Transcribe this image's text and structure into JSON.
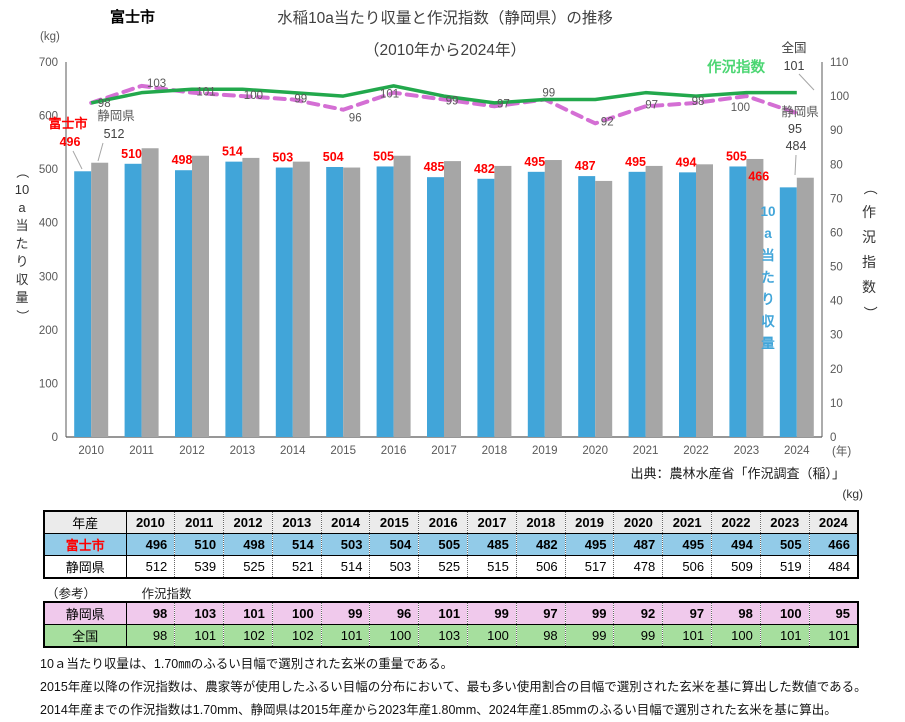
{
  "page": {
    "city_label": "富士市",
    "title_line1": "水稲10a当たり収量と作況指数（静岡県）の推移",
    "title_line2": "（2010年から2024年）",
    "source": "出典：農林水産省「作況調査（稲）」",
    "table_unit": "(kg)",
    "notes": [
      "10ａ当たり収量は、1.70㎜のふるい目幅で選別された玄米の重量である。",
      "2015年産以降の作況指数は、農家等が使用したふるい目幅の分布において、最も多い使用割合の目幅で選別された玄米を基に算出した数値である。",
      "2014年産までの作況指数は1.70mm、静岡県は2015年産から2023年産1.80mm、2024年産1.85mmのふるい目幅で選別された玄米を基に算出。"
    ]
  },
  "colors": {
    "bar_fuji": "#41a5d9",
    "bar_shizuoka": "#a6a6a6",
    "line_national": "#22a84c",
    "line_shizuoka_index": "#d46fd4",
    "label_red": "#fe0000",
    "sakyo_label_green": "#4cd673",
    "tick_gray": "#595959",
    "dark_label": "#404040",
    "table_fuji_bg": "#92cbe8",
    "table_pink_bg": "#f0c9ec",
    "table_green_bg": "#a6df9e",
    "table_header_bg": "#ebebeb"
  },
  "chart_data": {
    "type": "bar",
    "subtype": "bar+line combo",
    "title": "水稲10a当たり収量と作況指数（静岡県）の推移（2010年から2024年）",
    "categories": [
      "2010",
      "2011",
      "2012",
      "2013",
      "2014",
      "2015",
      "2016",
      "2017",
      "2018",
      "2019",
      "2020",
      "2021",
      "2022",
      "2023",
      "2024"
    ],
    "bar_series": [
      {
        "name": "富士市",
        "axis": "left",
        "values": [
          496,
          510,
          498,
          514,
          503,
          504,
          505,
          485,
          482,
          495,
          487,
          495,
          494,
          505,
          466
        ]
      },
      {
        "name": "静岡県",
        "axis": "left",
        "values": [
          512,
          539,
          525,
          521,
          514,
          503,
          525,
          515,
          506,
          517,
          478,
          506,
          509,
          519,
          484
        ]
      }
    ],
    "line_series": [
      {
        "name": "静岡県",
        "dashed": true,
        "axis": "right",
        "values": [
          98,
          103,
          101,
          100,
          99,
          96,
          101,
          99,
          97,
          99,
          92,
          97,
          98,
          100,
          95
        ]
      },
      {
        "name": "全国",
        "dashed": false,
        "axis": "right",
        "values": [
          98,
          101,
          102,
          102,
          101,
          100,
          103,
          100,
          98,
          99,
          99,
          101,
          100,
          101,
          101
        ]
      }
    ],
    "left_axis": {
      "label": "（10a当たり収量）",
      "unit": "(kg)",
      "min": 0,
      "max": 700,
      "step": 100
    },
    "right_axis": {
      "label": "（作況指数）",
      "min": 0,
      "max": 110,
      "step": 10
    },
    "x_axis": {
      "unit": "(年)"
    },
    "legend_position": "none",
    "grid": "off",
    "annotations": {
      "sakyo_label": "作況指数",
      "zenkoku_label": "全国",
      "zenkoku_last_value": "101",
      "shizuoka_right_label": "静岡県",
      "shizuoka_last_index": "95",
      "shizuoka_last_bar": "484",
      "fuji_callout_label": "富士市",
      "fuji_first_value": "496",
      "shizuoka_first_label": "静岡県",
      "shizuoka_first_value": "512",
      "vertical_blue_label": "10a当たり収量"
    }
  },
  "tables": {
    "ref_label": "（参考）",
    "ref_title": "作況指数",
    "yield": {
      "header": [
        "年産",
        "2010",
        "2011",
        "2012",
        "2013",
        "2014",
        "2015",
        "2016",
        "2017",
        "2018",
        "2019",
        "2020",
        "2021",
        "2022",
        "2023",
        "2024"
      ],
      "rows": [
        {
          "label": "富士市",
          "label_color": "#fe0000",
          "bg": "#92cbe8",
          "bold": true,
          "values": [
            496,
            510,
            498,
            514,
            503,
            504,
            505,
            485,
            482,
            495,
            487,
            495,
            494,
            505,
            466
          ]
        },
        {
          "label": "静岡県",
          "label_color": "#000000",
          "bg": "#ffffff",
          "bold": false,
          "values": [
            512,
            539,
            525,
            521,
            514,
            503,
            525,
            515,
            506,
            517,
            478,
            506,
            509,
            519,
            484
          ]
        }
      ]
    },
    "index": {
      "rows": [
        {
          "label": "静岡県",
          "label_color": "#000000",
          "bg": "#f0c9ec",
          "bold": true,
          "values": [
            98,
            103,
            101,
            100,
            99,
            96,
            101,
            99,
            97,
            99,
            92,
            97,
            98,
            100,
            95
          ]
        },
        {
          "label": "全国",
          "label_color": "#000000",
          "bg": "#a6df9e",
          "bold": false,
          "values": [
            98,
            101,
            102,
            102,
            101,
            100,
            103,
            100,
            98,
            99,
            99,
            101,
            100,
            101,
            101
          ]
        }
      ]
    }
  }
}
